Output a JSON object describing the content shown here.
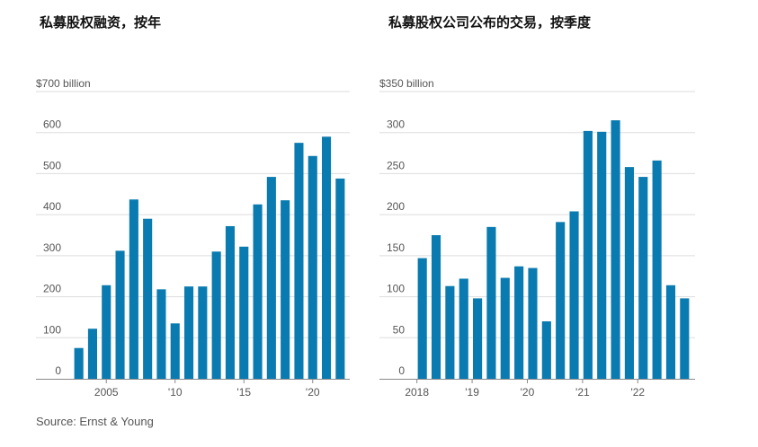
{
  "source": "Source: Ernst & Young",
  "colors": {
    "bar": "#0a7bb0",
    "grid": "#dddddd",
    "axis": "#888888"
  },
  "chart_data": [
    {
      "type": "bar",
      "title": "私募股权融资，按年",
      "top_label": "$700 billion",
      "categories": [
        "2003",
        "2004",
        "2005",
        "2006",
        "2007",
        "2008",
        "2009",
        "2010",
        "2011",
        "2012",
        "2013",
        "2014",
        "2015",
        "2016",
        "2017",
        "2018",
        "2019",
        "2020",
        "2021",
        "2022"
      ],
      "values": [
        75,
        122,
        228,
        312,
        437,
        390,
        218,
        135,
        225,
        225,
        310,
        372,
        322,
        425,
        492,
        435,
        575,
        543,
        590,
        488
      ],
      "ylim": [
        0,
        700
      ],
      "yticks": [
        0,
        100,
        200,
        300,
        400,
        500,
        600
      ],
      "xtick_labels": [
        {
          "category": "2005",
          "label": "2005"
        },
        {
          "category": "2010",
          "label": "'10"
        },
        {
          "category": "2015",
          "label": "'15"
        },
        {
          "category": "2020",
          "label": "'20"
        }
      ],
      "grid": true
    },
    {
      "type": "bar",
      "title": "私募股权公司公布的交易，按季度",
      "top_label": "$350 billion",
      "categories": [
        "2018 Q1",
        "2018 Q2",
        "2018 Q3",
        "2018 Q4",
        "2019 Q1",
        "2019 Q2",
        "2019 Q3",
        "2019 Q4",
        "2020 Q1",
        "2020 Q2",
        "2020 Q3",
        "2020 Q4",
        "2021 Q1",
        "2021 Q2",
        "2021 Q3",
        "2021 Q4",
        "2022 Q1",
        "2022 Q2",
        "2022 Q3",
        "2022 Q4"
      ],
      "values": [
        147,
        175,
        113,
        122,
        98,
        185,
        123,
        137,
        135,
        70,
        191,
        204,
        302,
        301,
        315,
        258,
        246,
        266,
        114,
        98
      ],
      "ylim": [
        0,
        350
      ],
      "yticks": [
        0,
        50,
        100,
        150,
        200,
        250,
        300
      ],
      "xtick_labels": [
        {
          "category": "2018 Q1",
          "label": "2018"
        },
        {
          "category": "2019 Q1",
          "label": "'19"
        },
        {
          "category": "2020 Q1",
          "label": "'20"
        },
        {
          "category": "2021 Q1",
          "label": "'21"
        },
        {
          "category": "2022 Q1",
          "label": "'22"
        }
      ],
      "grid": true
    }
  ]
}
